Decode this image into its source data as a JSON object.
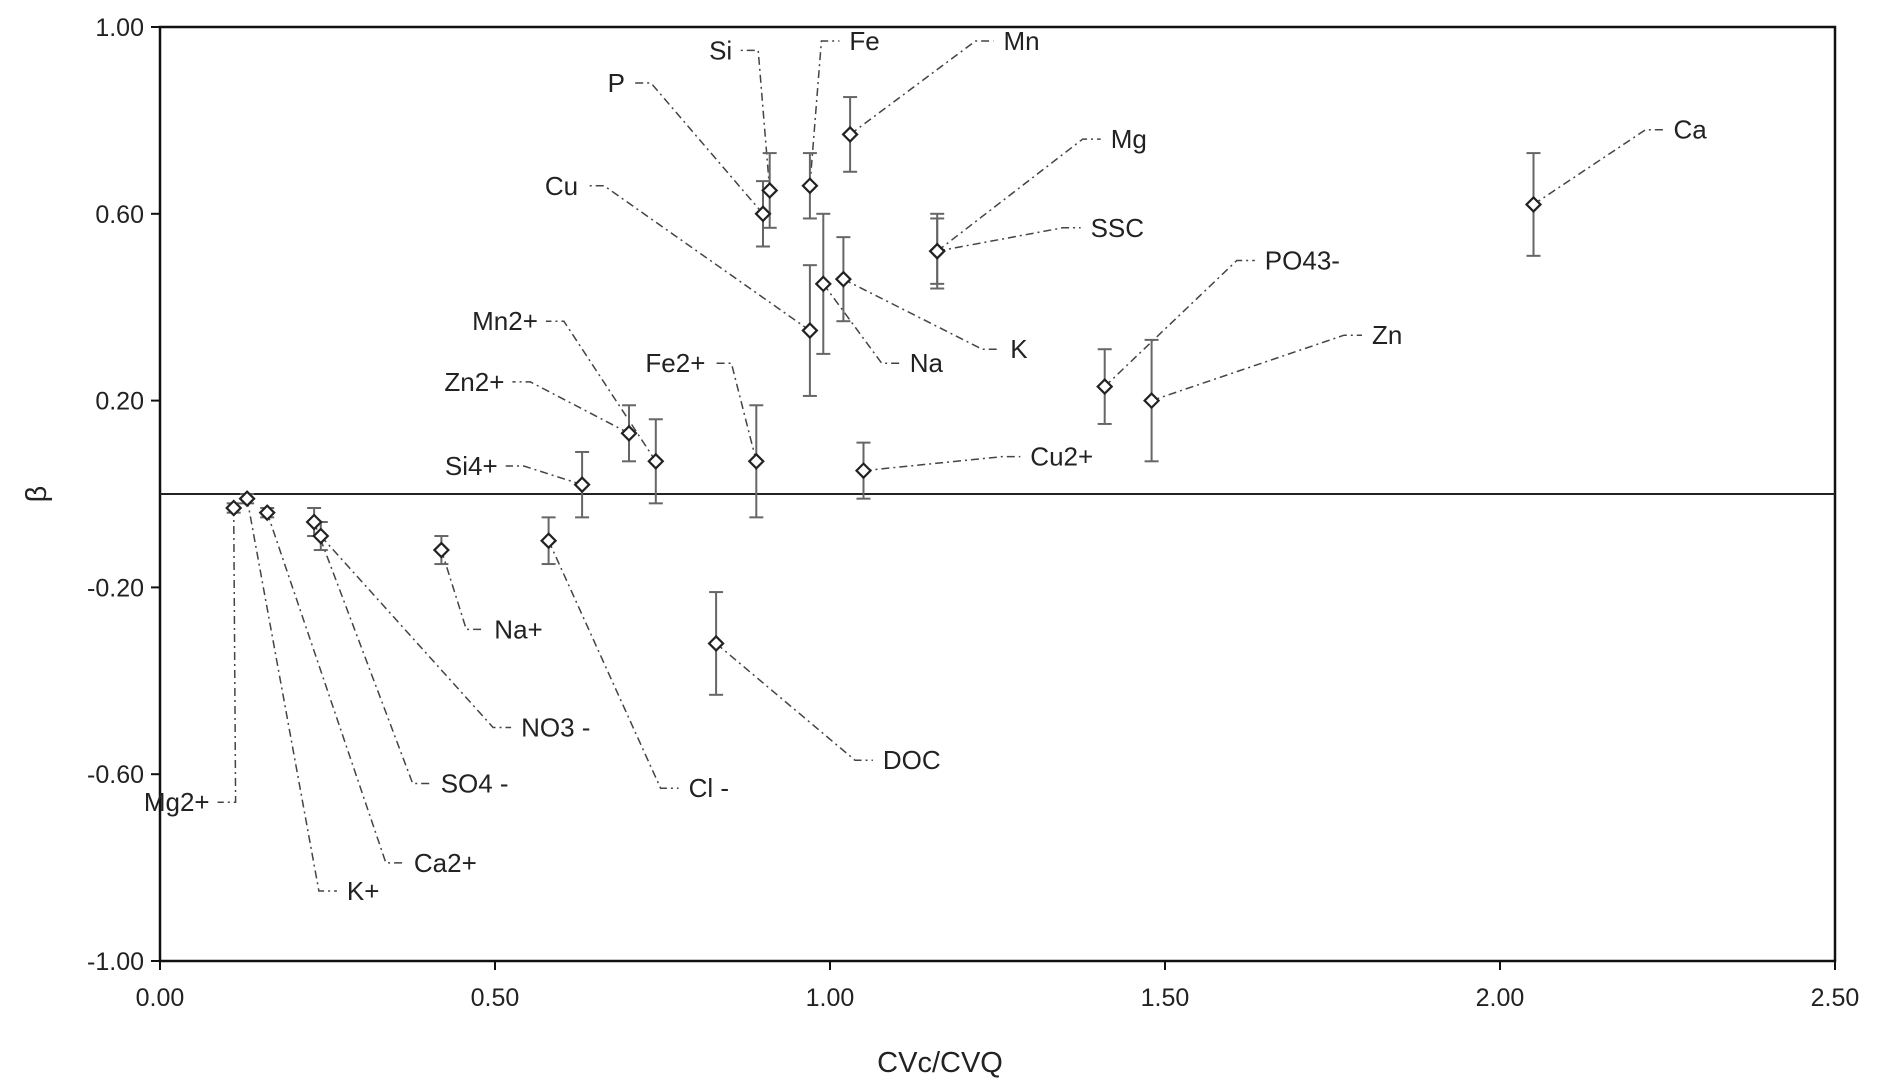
{
  "chart_data": {
    "type": "scatter",
    "title": "",
    "xlabel": "CVc/CVQ",
    "ylabel": "β",
    "xlim": [
      0,
      2.5
    ],
    "ylim": [
      -1,
      1
    ],
    "x_ticks": [
      "0.00",
      "0.50",
      "1.00",
      "1.50",
      "2.00",
      "2.50"
    ],
    "y_ticks": [
      "1.00",
      "0.60",
      "0.20",
      "-0.20",
      "-0.60",
      "-1.00"
    ],
    "reference_line_y": 0,
    "grid": false,
    "error_bars": true,
    "points": [
      {
        "label": "Si",
        "x": 0.91,
        "y": 0.65,
        "err": 0.08,
        "label_x": 0.86,
        "label_y": 0.95
      },
      {
        "label": "Fe",
        "x": 0.97,
        "y": 0.66,
        "err": 0.07,
        "label_x": 1.02,
        "label_y": 0.97
      },
      {
        "label": "Mn",
        "x": 1.03,
        "y": 0.77,
        "err": 0.08,
        "label_x": 1.25,
        "label_y": 0.97
      },
      {
        "label": "P",
        "x": 0.9,
        "y": 0.6,
        "err": 0.07,
        "label_x": 0.7,
        "label_y": 0.88
      },
      {
        "label": "Mg",
        "x": 1.16,
        "y": 0.52,
        "err": 0.07,
        "label_x": 1.41,
        "label_y": 0.76
      },
      {
        "label": "SSC",
        "x": 1.16,
        "y": 0.52,
        "err": 0.08,
        "label_x": 1.38,
        "label_y": 0.57
      },
      {
        "label": "Cu",
        "x": 0.97,
        "y": 0.35,
        "err": 0.14,
        "label_x": 0.63,
        "label_y": 0.66
      },
      {
        "label": "K",
        "x": 1.02,
        "y": 0.46,
        "err": 0.09,
        "label_x": 1.26,
        "label_y": 0.31
      },
      {
        "label": "Na",
        "x": 0.99,
        "y": 0.45,
        "err": 0.15,
        "label_x": 1.11,
        "label_y": 0.28
      },
      {
        "label": "Ca",
        "x": 2.05,
        "y": 0.62,
        "err": 0.11,
        "label_x": 2.25,
        "label_y": 0.78
      },
      {
        "label": "PO43-",
        "x": 1.41,
        "y": 0.23,
        "err": 0.08,
        "label_x": 1.64,
        "label_y": 0.5
      },
      {
        "label": "Zn",
        "x": 1.48,
        "y": 0.2,
        "err": 0.13,
        "label_x": 1.8,
        "label_y": 0.34
      },
      {
        "label": "Mn2+",
        "x": 0.74,
        "y": 0.07,
        "err": 0.09,
        "label_x": 0.57,
        "label_y": 0.37
      },
      {
        "label": "Zn2+",
        "x": 0.7,
        "y": 0.13,
        "err": 0.06,
        "label_x": 0.52,
        "label_y": 0.24
      },
      {
        "label": "Fe2+",
        "x": 0.89,
        "y": 0.07,
        "err": 0.12,
        "label_x": 0.82,
        "label_y": 0.28
      },
      {
        "label": "Si4+",
        "x": 0.63,
        "y": 0.02,
        "err": 0.07,
        "label_x": 0.51,
        "label_y": 0.06
      },
      {
        "label": "Cu2+",
        "x": 1.05,
        "y": 0.05,
        "err": 0.06,
        "label_x": 1.29,
        "label_y": 0.08
      },
      {
        "label": "Na+",
        "x": 0.42,
        "y": -0.12,
        "err": 0.03,
        "label_x": 0.49,
        "label_y": -0.29
      },
      {
        "label": "NO3 -",
        "x": 0.24,
        "y": -0.09,
        "err": 0.03,
        "label_x": 0.53,
        "label_y": -0.5
      },
      {
        "label": "SO4 -",
        "x": 0.23,
        "y": -0.06,
        "err": 0.03,
        "label_x": 0.41,
        "label_y": -0.62
      },
      {
        "label": "Mg2+",
        "x": 0.11,
        "y": -0.03,
        "err": 0.01,
        "label_x": 0.08,
        "label_y": -0.66
      },
      {
        "label": "K+",
        "x": 0.13,
        "y": -0.01,
        "err": 0.01,
        "label_x": 0.27,
        "label_y": -0.85
      },
      {
        "label": "Ca2+",
        "x": 0.16,
        "y": -0.04,
        "err": 0.01,
        "label_x": 0.37,
        "label_y": -0.79
      },
      {
        "label": "Cl -",
        "x": 0.58,
        "y": -0.1,
        "err": 0.05,
        "label_x": 0.78,
        "label_y": -0.63
      },
      {
        "label": "DOC",
        "x": 0.83,
        "y": -0.32,
        "err": 0.11,
        "label_x": 1.07,
        "label_y": -0.57
      }
    ]
  }
}
